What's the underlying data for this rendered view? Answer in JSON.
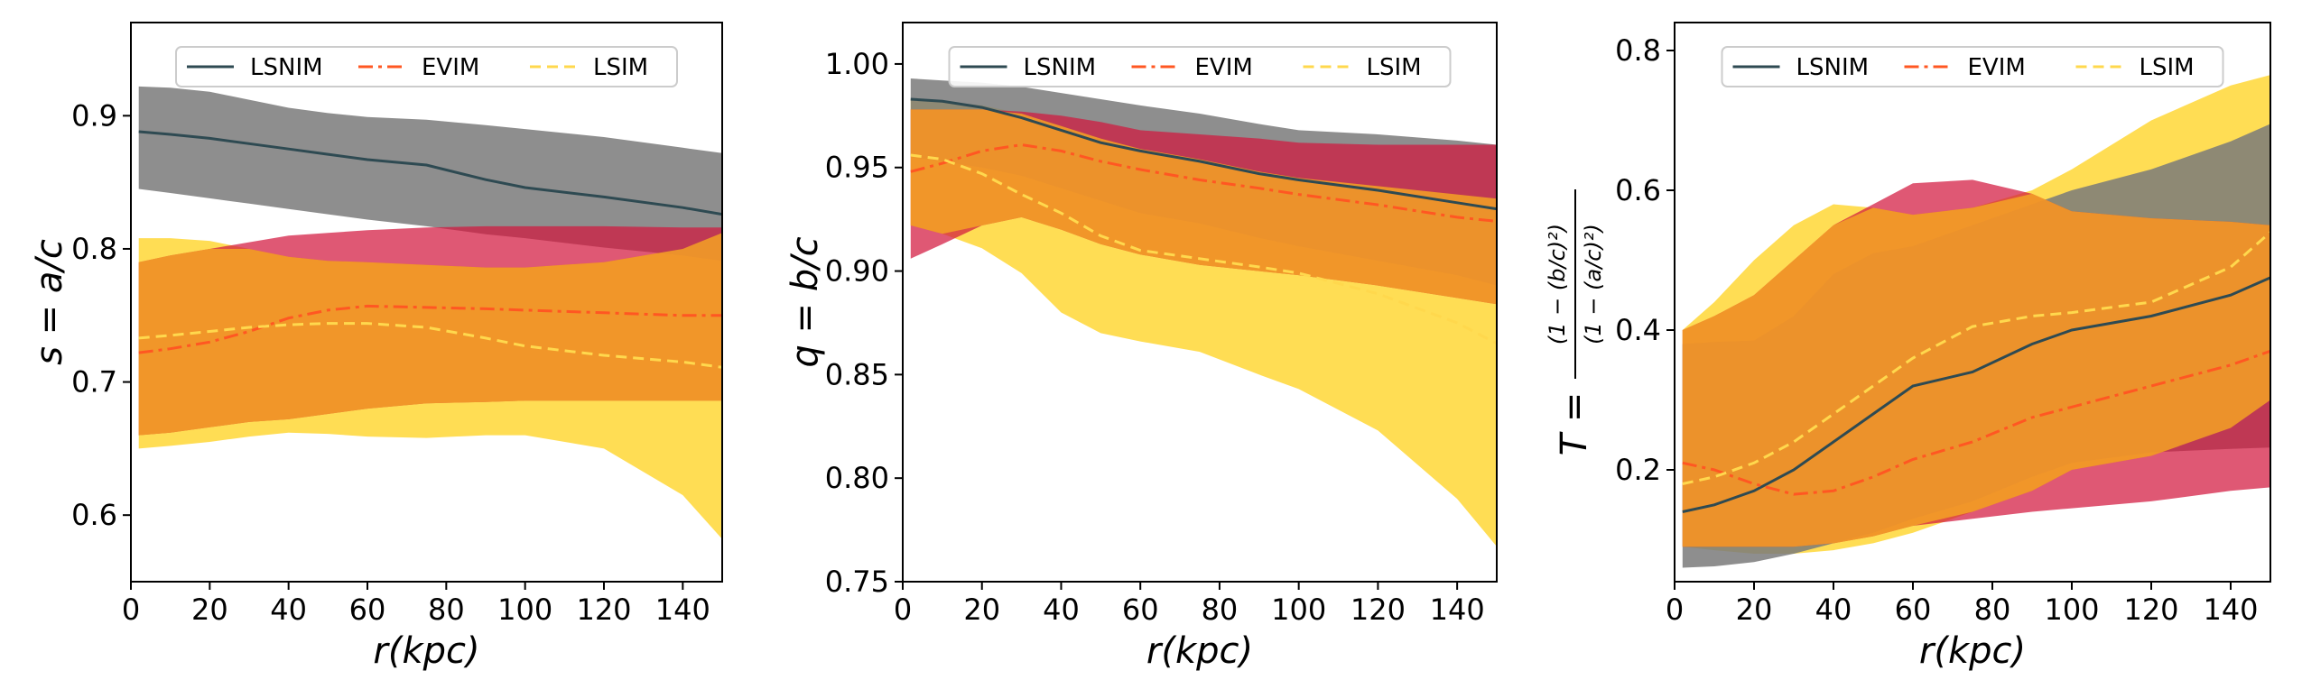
{
  "colors": {
    "lsnim": "#2e4a52",
    "evim": "#ff5722",
    "lsim": "#ffd84d",
    "band_gray": "#7a7a7a",
    "band_red": "#d2173f",
    "band_orange": "#f5a623",
    "band_yellow": "#ffd52e"
  },
  "legend": [
    "LSNIM",
    "EVIM",
    "LSIM"
  ],
  "chart_data": [
    {
      "type": "line",
      "title": "",
      "xlabel": "r(kpc)",
      "ylabel": "s = a/c",
      "xlim": [
        0,
        150
      ],
      "ylim": [
        0.55,
        0.97
      ],
      "xticks": [
        0,
        20,
        40,
        60,
        80,
        100,
        120,
        140
      ],
      "yticks": [
        0.6,
        0.7,
        0.8,
        0.9
      ],
      "ytick_labels": [
        "0.6",
        "0.7",
        "0.8",
        "0.9"
      ],
      "x": [
        2,
        10,
        20,
        30,
        40,
        50,
        60,
        75,
        90,
        100,
        120,
        140,
        150
      ],
      "series": [
        {
          "name": "LSNIM",
          "style": "solid",
          "values": [
            0.888,
            0.886,
            0.883,
            0.879,
            0.875,
            0.871,
            0.867,
            0.863,
            0.852,
            0.846,
            0.839,
            0.831,
            0.826
          ],
          "band_low": [
            0.845,
            0.842,
            0.838,
            0.834,
            0.83,
            0.826,
            0.822,
            0.817,
            0.811,
            0.808,
            0.801,
            0.795,
            0.791
          ],
          "band_high": [
            0.922,
            0.921,
            0.918,
            0.912,
            0.906,
            0.902,
            0.899,
            0.897,
            0.893,
            0.89,
            0.884,
            0.876,
            0.872
          ]
        },
        {
          "name": "EVIM",
          "style": "dashdot",
          "values": [
            0.722,
            0.725,
            0.73,
            0.738,
            0.748,
            0.754,
            0.757,
            0.756,
            0.755,
            0.754,
            0.752,
            0.75,
            0.75
          ],
          "band_low": [
            0.66,
            0.662,
            0.666,
            0.67,
            0.672,
            0.676,
            0.68,
            0.684,
            0.685,
            0.686,
            0.686,
            0.686,
            0.686
          ],
          "band_high": [
            0.79,
            0.795,
            0.8,
            0.805,
            0.81,
            0.812,
            0.814,
            0.816,
            0.817,
            0.817,
            0.817,
            0.816,
            0.816
          ]
        },
        {
          "name": "LSIM",
          "style": "dashed",
          "values": [
            0.733,
            0.735,
            0.738,
            0.741,
            0.743,
            0.744,
            0.744,
            0.741,
            0.733,
            0.727,
            0.72,
            0.715,
            0.711
          ],
          "band_low": [
            0.65,
            0.652,
            0.655,
            0.659,
            0.662,
            0.661,
            0.659,
            0.658,
            0.66,
            0.66,
            0.65,
            0.615,
            0.582
          ],
          "band_high": [
            0.808,
            0.808,
            0.806,
            0.8,
            0.794,
            0.791,
            0.79,
            0.788,
            0.786,
            0.786,
            0.79,
            0.8,
            0.812
          ]
        }
      ]
    },
    {
      "type": "line",
      "title": "",
      "xlabel": "r(kpc)",
      "ylabel": "q = b/c",
      "xlim": [
        0,
        150
      ],
      "ylim": [
        0.75,
        1.02
      ],
      "xticks": [
        0,
        20,
        40,
        60,
        80,
        100,
        120,
        140
      ],
      "yticks": [
        0.75,
        0.8,
        0.85,
        0.9,
        0.95,
        1.0
      ],
      "ytick_labels": [
        "0.75",
        "0.80",
        "0.85",
        "0.90",
        "0.95",
        "1.00"
      ],
      "x": [
        2,
        10,
        20,
        30,
        40,
        50,
        60,
        75,
        90,
        100,
        120,
        140,
        150
      ],
      "series": [
        {
          "name": "LSNIM",
          "style": "solid",
          "values": [
            0.983,
            0.982,
            0.979,
            0.974,
            0.968,
            0.962,
            0.958,
            0.953,
            0.947,
            0.944,
            0.939,
            0.933,
            0.93
          ],
          "band_low": [
            0.955,
            0.953,
            0.95,
            0.946,
            0.94,
            0.934,
            0.928,
            0.923,
            0.916,
            0.912,
            0.905,
            0.898,
            0.893
          ],
          "band_high": [
            0.993,
            0.992,
            0.991,
            0.989,
            0.986,
            0.983,
            0.98,
            0.976,
            0.971,
            0.968,
            0.966,
            0.963,
            0.961
          ]
        },
        {
          "name": "EVIM",
          "style": "dashdot",
          "values": [
            0.948,
            0.952,
            0.958,
            0.961,
            0.958,
            0.953,
            0.949,
            0.944,
            0.94,
            0.937,
            0.932,
            0.926,
            0.924
          ],
          "band_low": [
            0.906,
            0.913,
            0.922,
            0.926,
            0.92,
            0.913,
            0.908,
            0.903,
            0.9,
            0.898,
            0.893,
            0.887,
            0.884
          ],
          "band_high": [
            0.978,
            0.978,
            0.978,
            0.977,
            0.975,
            0.972,
            0.968,
            0.966,
            0.964,
            0.962,
            0.961,
            0.961,
            0.961
          ]
        },
        {
          "name": "LSIM",
          "style": "dashed",
          "values": [
            0.956,
            0.954,
            0.947,
            0.937,
            0.928,
            0.917,
            0.91,
            0.906,
            0.902,
            0.899,
            0.889,
            0.875,
            0.865
          ],
          "band_low": [
            0.922,
            0.918,
            0.911,
            0.899,
            0.88,
            0.87,
            0.866,
            0.861,
            0.85,
            0.843,
            0.823,
            0.79,
            0.767
          ],
          "band_high": [
            0.983,
            0.982,
            0.98,
            0.976,
            0.97,
            0.964,
            0.959,
            0.954,
            0.948,
            0.945,
            0.941,
            0.937,
            0.935
          ]
        }
      ]
    },
    {
      "type": "line",
      "title": "",
      "xlabel": "r(kpc)",
      "ylabel_prefix": "T =",
      "ylabel_numerator": "(1 − (b/c)²)",
      "ylabel_denominator": "(1 − (a/c)²)",
      "xlim": [
        0,
        150
      ],
      "ylim": [
        0.04,
        0.84
      ],
      "xticks": [
        0,
        20,
        40,
        60,
        80,
        100,
        120,
        140
      ],
      "yticks": [
        0.2,
        0.4,
        0.6,
        0.8
      ],
      "ytick_labels": [
        "0.2",
        "0.4",
        "0.6",
        "0.8"
      ],
      "x": [
        2,
        10,
        20,
        30,
        40,
        50,
        60,
        75,
        90,
        100,
        120,
        140,
        150
      ],
      "series": [
        {
          "name": "LSNIM",
          "style": "solid",
          "values": [
            0.14,
            0.15,
            0.17,
            0.2,
            0.24,
            0.28,
            0.32,
            0.34,
            0.38,
            0.4,
            0.42,
            0.45,
            0.475
          ],
          "band_low": [
            0.06,
            0.062,
            0.068,
            0.08,
            0.095,
            0.11,
            0.13,
            0.155,
            0.19,
            0.21,
            0.225,
            0.23,
            0.232
          ],
          "band_high": [
            0.38,
            0.383,
            0.385,
            0.42,
            0.48,
            0.51,
            0.52,
            0.55,
            0.58,
            0.6,
            0.63,
            0.67,
            0.695
          ]
        },
        {
          "name": "EVIM",
          "style": "dashdot",
          "values": [
            0.21,
            0.2,
            0.18,
            0.165,
            0.17,
            0.19,
            0.215,
            0.24,
            0.275,
            0.29,
            0.32,
            0.35,
            0.37
          ],
          "band_low": [
            0.09,
            0.09,
            0.09,
            0.09,
            0.095,
            0.105,
            0.12,
            0.13,
            0.14,
            0.145,
            0.155,
            0.17,
            0.175
          ],
          "band_high": [
            0.4,
            0.42,
            0.45,
            0.5,
            0.55,
            0.58,
            0.61,
            0.615,
            0.595,
            0.57,
            0.56,
            0.555,
            0.55
          ]
        },
        {
          "name": "LSIM",
          "style": "dashed",
          "values": [
            0.18,
            0.19,
            0.21,
            0.24,
            0.28,
            0.32,
            0.36,
            0.405,
            0.42,
            0.425,
            0.44,
            0.49,
            0.54
          ],
          "band_low": [
            0.09,
            0.085,
            0.08,
            0.08,
            0.085,
            0.095,
            0.11,
            0.14,
            0.17,
            0.2,
            0.22,
            0.26,
            0.3
          ],
          "band_high": [
            0.4,
            0.44,
            0.5,
            0.55,
            0.58,
            0.575,
            0.565,
            0.575,
            0.6,
            0.63,
            0.7,
            0.75,
            0.765
          ]
        }
      ]
    }
  ]
}
